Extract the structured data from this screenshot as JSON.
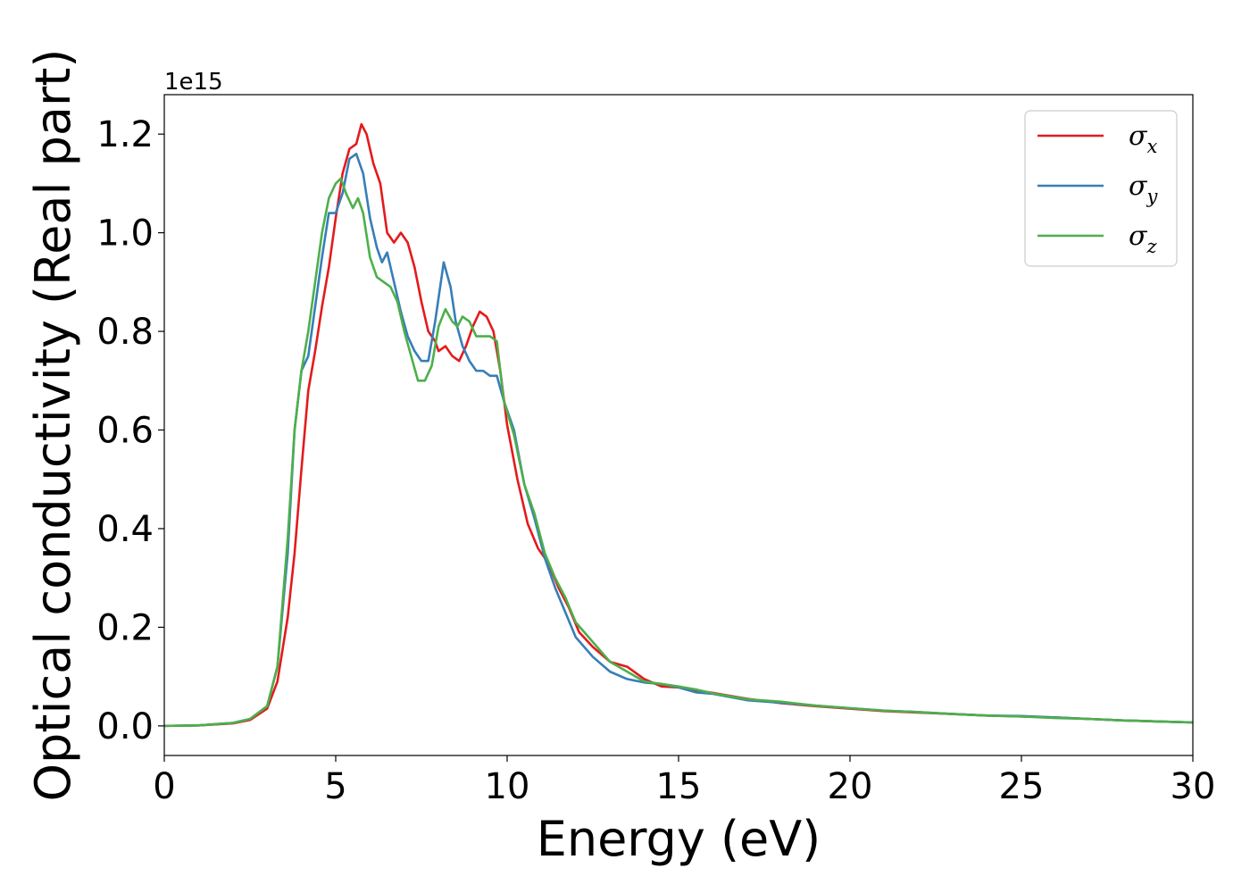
{
  "chart_data": {
    "type": "line",
    "xlabel": "Energy (eV)",
    "ylabel": "Optical conductivity (Real part)",
    "y_offset_label": "1e15",
    "xlim": [
      0,
      30
    ],
    "ylim": [
      -0.06,
      1.28
    ],
    "x_ticks": [
      0,
      5,
      10,
      15,
      20,
      25,
      30
    ],
    "x_tick_labels": [
      "0",
      "5",
      "10",
      "15",
      "20",
      "25",
      "30"
    ],
    "y_ticks": [
      0.0,
      0.2,
      0.4,
      0.6,
      0.8,
      1.0,
      1.2
    ],
    "y_tick_labels": [
      "0.0",
      "0.2",
      "0.4",
      "0.6",
      "0.8",
      "1.0",
      "1.2"
    ],
    "grid": false,
    "legend_position": "top-right",
    "series": [
      {
        "name": "σx",
        "label_base": "σ",
        "label_sub": "x",
        "color": "#e41a1c",
        "points": [
          [
            0,
            0.0
          ],
          [
            1,
            0.001
          ],
          [
            2,
            0.005
          ],
          [
            2.5,
            0.012
          ],
          [
            3,
            0.035
          ],
          [
            3.3,
            0.09
          ],
          [
            3.6,
            0.22
          ],
          [
            3.8,
            0.35
          ],
          [
            4.0,
            0.52
          ],
          [
            4.2,
            0.68
          ],
          [
            4.4,
            0.76
          ],
          [
            4.6,
            0.85
          ],
          [
            4.8,
            0.93
          ],
          [
            5.0,
            1.03
          ],
          [
            5.2,
            1.12
          ],
          [
            5.4,
            1.17
          ],
          [
            5.6,
            1.18
          ],
          [
            5.75,
            1.22
          ],
          [
            5.9,
            1.2
          ],
          [
            6.1,
            1.14
          ],
          [
            6.3,
            1.1
          ],
          [
            6.5,
            1.0
          ],
          [
            6.7,
            0.98
          ],
          [
            6.9,
            1.0
          ],
          [
            7.1,
            0.98
          ],
          [
            7.3,
            0.93
          ],
          [
            7.5,
            0.86
          ],
          [
            7.7,
            0.8
          ],
          [
            7.9,
            0.78
          ],
          [
            8.0,
            0.76
          ],
          [
            8.2,
            0.77
          ],
          [
            8.4,
            0.75
          ],
          [
            8.6,
            0.74
          ],
          [
            8.8,
            0.77
          ],
          [
            9.0,
            0.81
          ],
          [
            9.2,
            0.84
          ],
          [
            9.4,
            0.83
          ],
          [
            9.6,
            0.8
          ],
          [
            9.8,
            0.72
          ],
          [
            10.0,
            0.61
          ],
          [
            10.3,
            0.5
          ],
          [
            10.6,
            0.41
          ],
          [
            10.9,
            0.36
          ],
          [
            11.2,
            0.33
          ],
          [
            11.5,
            0.28
          ],
          [
            11.8,
            0.24
          ],
          [
            12.1,
            0.19
          ],
          [
            12.5,
            0.16
          ],
          [
            13.0,
            0.13
          ],
          [
            13.5,
            0.12
          ],
          [
            14.0,
            0.095
          ],
          [
            14.5,
            0.08
          ],
          [
            15.0,
            0.078
          ],
          [
            15.5,
            0.072
          ],
          [
            16.0,
            0.067
          ],
          [
            17.0,
            0.055
          ],
          [
            18.0,
            0.046
          ],
          [
            19.0,
            0.04
          ],
          [
            20.0,
            0.035
          ],
          [
            21.0,
            0.03
          ],
          [
            22.0,
            0.027
          ],
          [
            23.0,
            0.024
          ],
          [
            24.0,
            0.021
          ],
          [
            25.0,
            0.019
          ],
          [
            26.0,
            0.017
          ],
          [
            27.0,
            0.014
          ],
          [
            28.0,
            0.011
          ],
          [
            29.0,
            0.009
          ],
          [
            30.0,
            0.007
          ]
        ]
      },
      {
        "name": "σy",
        "label_base": "σ",
        "label_sub": "y",
        "color": "#377eb8",
        "points": [
          [
            0,
            0.0
          ],
          [
            1,
            0.001
          ],
          [
            2,
            0.006
          ],
          [
            2.5,
            0.014
          ],
          [
            3,
            0.04
          ],
          [
            3.3,
            0.12
          ],
          [
            3.6,
            0.35
          ],
          [
            3.8,
            0.6
          ],
          [
            4.0,
            0.72
          ],
          [
            4.2,
            0.75
          ],
          [
            4.4,
            0.85
          ],
          [
            4.6,
            0.95
          ],
          [
            4.8,
            1.04
          ],
          [
            5.0,
            1.04
          ],
          [
            5.2,
            1.08
          ],
          [
            5.4,
            1.15
          ],
          [
            5.6,
            1.16
          ],
          [
            5.8,
            1.12
          ],
          [
            6.0,
            1.03
          ],
          [
            6.2,
            0.97
          ],
          [
            6.35,
            0.94
          ],
          [
            6.5,
            0.96
          ],
          [
            6.7,
            0.9
          ],
          [
            6.9,
            0.84
          ],
          [
            7.1,
            0.79
          ],
          [
            7.3,
            0.76
          ],
          [
            7.5,
            0.74
          ],
          [
            7.7,
            0.74
          ],
          [
            7.9,
            0.82
          ],
          [
            8.15,
            0.94
          ],
          [
            8.35,
            0.89
          ],
          [
            8.5,
            0.82
          ],
          [
            8.7,
            0.77
          ],
          [
            8.9,
            0.74
          ],
          [
            9.1,
            0.72
          ],
          [
            9.3,
            0.72
          ],
          [
            9.5,
            0.71
          ],
          [
            9.7,
            0.71
          ],
          [
            9.9,
            0.66
          ],
          [
            10.2,
            0.6
          ],
          [
            10.5,
            0.49
          ],
          [
            10.8,
            0.42
          ],
          [
            11.1,
            0.34
          ],
          [
            11.4,
            0.28
          ],
          [
            11.7,
            0.23
          ],
          [
            12.0,
            0.18
          ],
          [
            12.5,
            0.14
          ],
          [
            13.0,
            0.11
          ],
          [
            13.5,
            0.095
          ],
          [
            14.0,
            0.088
          ],
          [
            14.5,
            0.085
          ],
          [
            15.0,
            0.078
          ],
          [
            15.5,
            0.068
          ],
          [
            16.0,
            0.065
          ],
          [
            17.0,
            0.052
          ],
          [
            18.0,
            0.047
          ],
          [
            19.0,
            0.041
          ],
          [
            20.0,
            0.036
          ],
          [
            21.0,
            0.031
          ],
          [
            22.0,
            0.028
          ],
          [
            23.0,
            0.024
          ],
          [
            24.0,
            0.021
          ],
          [
            25.0,
            0.02
          ],
          [
            26.0,
            0.017
          ],
          [
            27.0,
            0.014
          ],
          [
            28.0,
            0.011
          ],
          [
            29.0,
            0.009
          ],
          [
            30.0,
            0.007
          ]
        ]
      },
      {
        "name": "σz",
        "label_base": "σ",
        "label_sub": "z",
        "color": "#4daf4a",
        "points": [
          [
            0,
            0.0
          ],
          [
            1,
            0.001
          ],
          [
            2,
            0.006
          ],
          [
            2.5,
            0.014
          ],
          [
            3,
            0.04
          ],
          [
            3.3,
            0.12
          ],
          [
            3.6,
            0.38
          ],
          [
            3.8,
            0.6
          ],
          [
            4.0,
            0.72
          ],
          [
            4.2,
            0.8
          ],
          [
            4.4,
            0.9
          ],
          [
            4.6,
            1.0
          ],
          [
            4.8,
            1.07
          ],
          [
            5.0,
            1.1
          ],
          [
            5.15,
            1.11
          ],
          [
            5.3,
            1.08
          ],
          [
            5.5,
            1.05
          ],
          [
            5.65,
            1.07
          ],
          [
            5.8,
            1.04
          ],
          [
            6.0,
            0.95
          ],
          [
            6.2,
            0.91
          ],
          [
            6.4,
            0.9
          ],
          [
            6.6,
            0.89
          ],
          [
            6.8,
            0.86
          ],
          [
            7.0,
            0.8
          ],
          [
            7.2,
            0.75
          ],
          [
            7.4,
            0.7
          ],
          [
            7.6,
            0.7
          ],
          [
            7.8,
            0.73
          ],
          [
            8.0,
            0.81
          ],
          [
            8.2,
            0.845
          ],
          [
            8.4,
            0.82
          ],
          [
            8.55,
            0.81
          ],
          [
            8.7,
            0.83
          ],
          [
            8.9,
            0.82
          ],
          [
            9.1,
            0.79
          ],
          [
            9.3,
            0.79
          ],
          [
            9.5,
            0.79
          ],
          [
            9.7,
            0.78
          ],
          [
            9.9,
            0.66
          ],
          [
            10.2,
            0.59
          ],
          [
            10.5,
            0.49
          ],
          [
            10.8,
            0.43
          ],
          [
            11.1,
            0.35
          ],
          [
            11.4,
            0.3
          ],
          [
            11.7,
            0.26
          ],
          [
            12.0,
            0.21
          ],
          [
            12.5,
            0.17
          ],
          [
            13.0,
            0.13
          ],
          [
            13.5,
            0.11
          ],
          [
            14.0,
            0.09
          ],
          [
            14.5,
            0.085
          ],
          [
            15.0,
            0.08
          ],
          [
            15.5,
            0.074
          ],
          [
            16.0,
            0.066
          ],
          [
            17.0,
            0.054
          ],
          [
            18.0,
            0.049
          ],
          [
            19.0,
            0.041
          ],
          [
            20.0,
            0.036
          ],
          [
            21.0,
            0.031
          ],
          [
            22.0,
            0.028
          ],
          [
            23.0,
            0.024
          ],
          [
            24.0,
            0.021
          ],
          [
            25.0,
            0.019
          ],
          [
            26.0,
            0.016
          ],
          [
            27.0,
            0.014
          ],
          [
            28.0,
            0.011
          ],
          [
            29.0,
            0.009
          ],
          [
            30.0,
            0.007
          ]
        ]
      }
    ]
  }
}
